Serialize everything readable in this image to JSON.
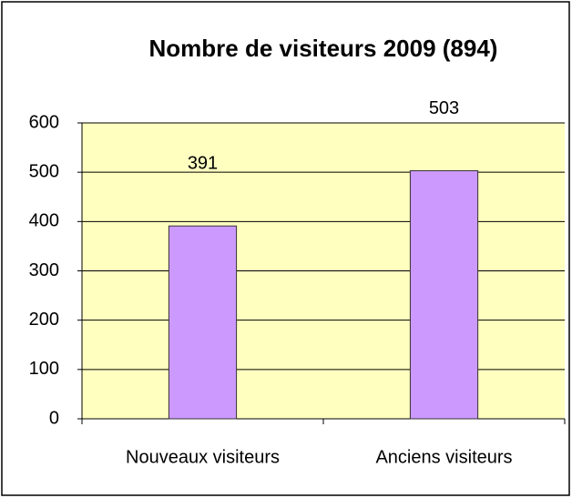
{
  "chart_data": {
    "type": "bar",
    "title": "Nombre de visiteurs 2009 (894)",
    "categories": [
      "Nouveaux visiteurs",
      "Anciens visiteurs"
    ],
    "values": [
      391,
      503
    ],
    "color": "#cc99ff",
    "ylim": [
      0,
      600
    ],
    "yticks": [
      0,
      100,
      200,
      300,
      400,
      500,
      600
    ],
    "grid": true
  }
}
